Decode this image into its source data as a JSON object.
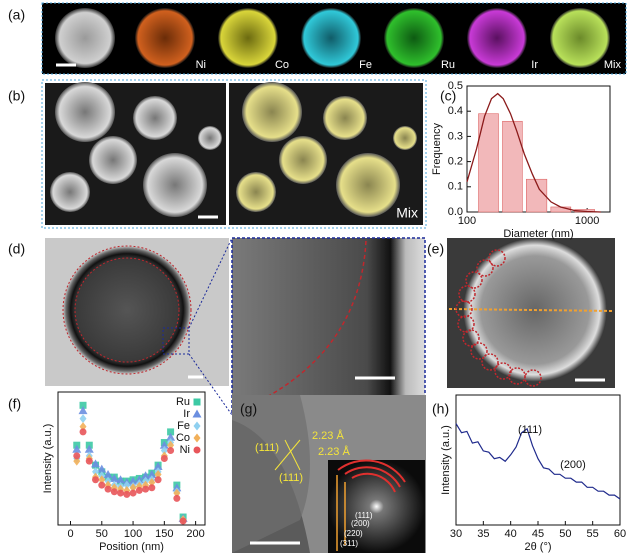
{
  "panels": {
    "a": {
      "label": "(a)",
      "maps": [
        "Ni",
        "Co",
        "Fe",
        "Ru",
        "Ir",
        "Mix"
      ]
    },
    "b": {
      "label": "(b)",
      "overlay": "Mix"
    },
    "d": {
      "label": "(d)"
    },
    "e": {
      "label": "(e)"
    },
    "g": {
      "label": "(g)",
      "d_spacings": [
        "2.23 Å",
        "2.23 Å"
      ],
      "planes": [
        "(111)",
        "(111)"
      ],
      "fft_planes": [
        "(111)",
        "(200)",
        "(220)",
        "(311)"
      ]
    }
  },
  "chart_data": [
    {
      "type": "histogram",
      "label": "(c)",
      "x_label": "Diameter (nm)",
      "y_label": "Frequency",
      "bins": [
        120,
        190,
        300,
        480,
        760,
        1200
      ],
      "values": [
        0.39,
        0.36,
        0.13,
        0.02,
        0.01
      ],
      "color": "#f2b8ba",
      "fit": {
        "color": "#8b1a1a",
        "x": [
          100,
          120,
          140,
          160,
          180,
          200,
          230,
          260,
          300,
          350,
          400,
          500,
          600,
          800,
          1000,
          1300
        ],
        "y": [
          0.12,
          0.25,
          0.38,
          0.45,
          0.47,
          0.45,
          0.39,
          0.32,
          0.23,
          0.15,
          0.09,
          0.04,
          0.02,
          0.005,
          0.002,
          0
        ]
      },
      "log_x": true,
      "xlim": [
        100,
        1550
      ],
      "ylim": [
        0,
        0.5
      ],
      "xticks": [
        100,
        1000
      ],
      "yticks": [
        {
          "value": 0,
          "label": "0.0"
        },
        0.1,
        0.2,
        0.3,
        0.4,
        0.5
      ]
    },
    {
      "type": "scatter",
      "label": "(f)",
      "x_label": "Position (nm)",
      "y_label": "Intensity (a.u.)",
      "x": [
        10,
        20,
        30,
        40,
        50,
        60,
        70,
        80,
        90,
        100,
        110,
        120,
        130,
        140,
        150,
        160,
        170,
        180
      ],
      "series": [
        {
          "name": "Ru",
          "color": "#3cc9a4",
          "marker": "square",
          "values": [
            0.6,
            0.9,
            0.6,
            0.45,
            0.4,
            0.36,
            0.36,
            0.33,
            0.33,
            0.34,
            0.35,
            0.36,
            0.39,
            0.45,
            0.62,
            0.7,
            0.3,
            0.06
          ]
        },
        {
          "name": "Ir",
          "color": "#6b8fe0",
          "marker": "triangle",
          "values": [
            0.57,
            0.86,
            0.57,
            0.46,
            0.42,
            0.38,
            0.35,
            0.34,
            0.32,
            0.33,
            0.34,
            0.37,
            0.38,
            0.44,
            0.6,
            0.66,
            0.28,
            0.05
          ]
        },
        {
          "name": "Fe",
          "color": "#8fd0f0",
          "marker": "diamond",
          "values": [
            0.5,
            0.8,
            0.52,
            0.4,
            0.37,
            0.33,
            0.3,
            0.29,
            0.3,
            0.29,
            0.31,
            0.33,
            0.34,
            0.4,
            0.56,
            0.62,
            0.25,
            0.04
          ]
        },
        {
          "name": "Co",
          "color": "#f2b05a",
          "marker": "diamond",
          "values": [
            0.48,
            0.74,
            0.5,
            0.36,
            0.34,
            0.3,
            0.28,
            0.27,
            0.26,
            0.28,
            0.29,
            0.3,
            0.32,
            0.38,
            0.52,
            0.6,
            0.24,
            0.04
          ]
        },
        {
          "name": "Ni",
          "color": "#e8555a",
          "marker": "circle",
          "values": [
            0.52,
            0.7,
            0.48,
            0.34,
            0.3,
            0.27,
            0.25,
            0.24,
            0.23,
            0.24,
            0.26,
            0.27,
            0.28,
            0.34,
            0.5,
            0.56,
            0.2,
            0.03
          ]
        }
      ],
      "legend": "upper right",
      "xlim": [
        -20,
        215
      ],
      "ylim": [
        0,
        1
      ],
      "xticks": [
        0,
        50,
        100,
        150,
        200
      ]
    },
    {
      "type": "line",
      "label": "(h)",
      "x_label": "2θ (°)",
      "y_label": "Intensity (a.u.)",
      "x": [
        30,
        31,
        32,
        33,
        34,
        35,
        36,
        37,
        38,
        39,
        40,
        41,
        42,
        43,
        44,
        45,
        46,
        47,
        48,
        49,
        50,
        51,
        52,
        53,
        54,
        55,
        56,
        57,
        58,
        59,
        60
      ],
      "series": [
        {
          "color": "#1f2a8c",
          "values": [
            0.78,
            0.71,
            0.72,
            0.63,
            0.64,
            0.57,
            0.56,
            0.51,
            0.52,
            0.49,
            0.54,
            0.6,
            0.71,
            0.74,
            0.61,
            0.51,
            0.44,
            0.43,
            0.39,
            0.39,
            0.36,
            0.36,
            0.33,
            0.33,
            0.29,
            0.29,
            0.26,
            0.26,
            0.23,
            0.23,
            0.2
          ]
        }
      ],
      "annotations": [
        "(111)",
        "(200)"
      ],
      "xlim": [
        30,
        60
      ],
      "ylim": [
        0,
        1
      ],
      "xticks": [
        30,
        35,
        40,
        45,
        50,
        55,
        60
      ]
    }
  ]
}
